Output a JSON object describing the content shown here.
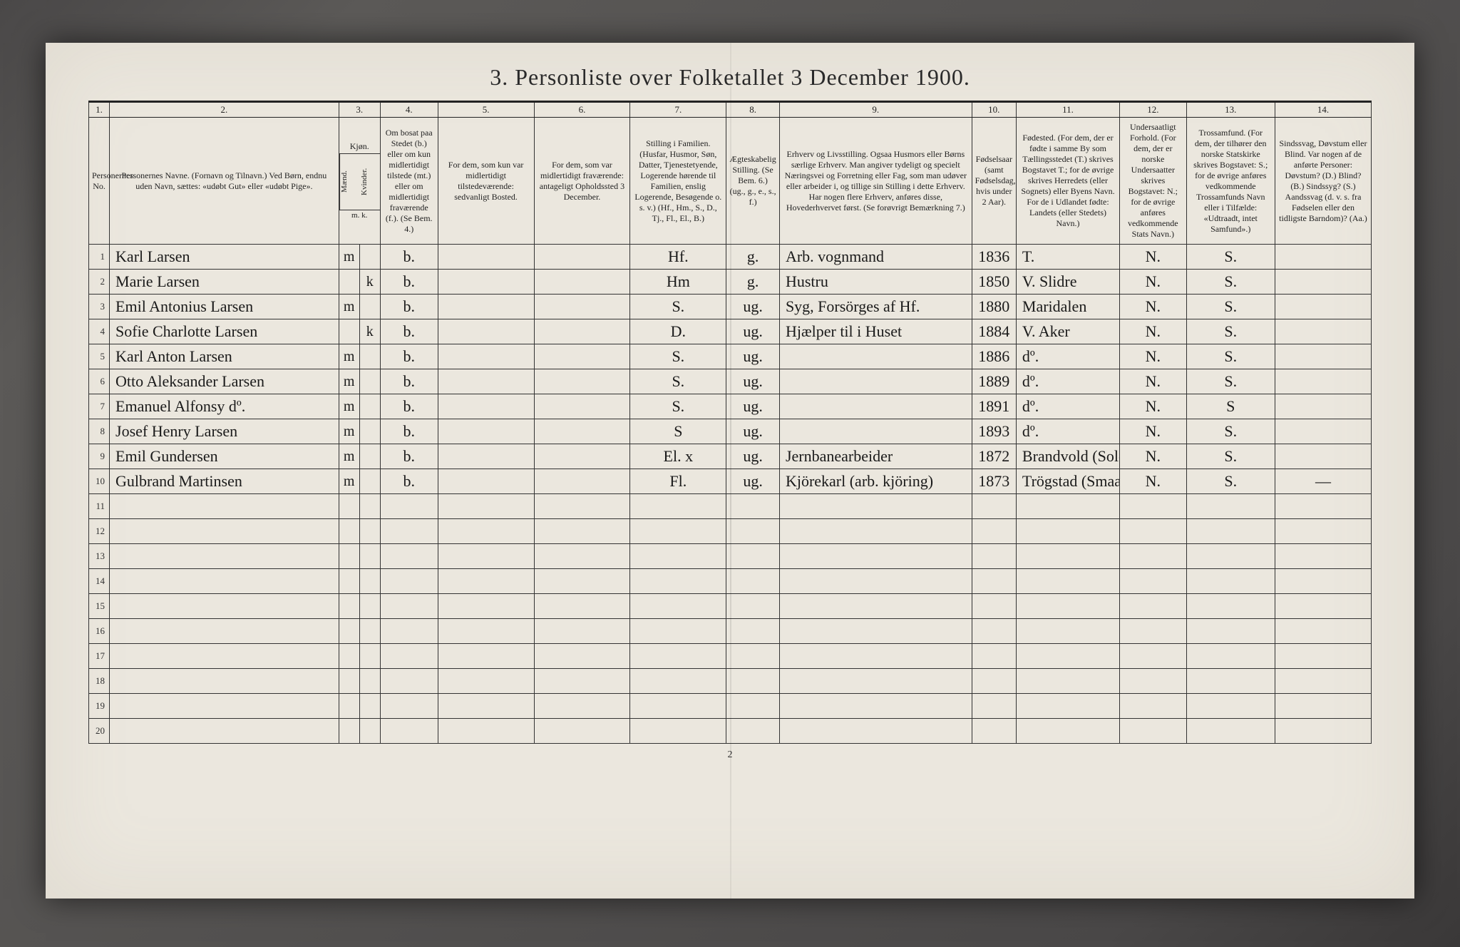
{
  "title": "3. Personliste over Folketallet 3 December 1900.",
  "footer_page": "2",
  "colnums": [
    "1.",
    "2.",
    "3.",
    "4.",
    "5.",
    "6.",
    "7.",
    "8.",
    "9.",
    "10.",
    "11.",
    "12.",
    "13.",
    "14."
  ],
  "headers": {
    "persno": "Personernes No.",
    "name": "Personernes Navne.\n(Fornavn og Tilnavn.)\nVed Børn, endnu uden Navn, sættes: «udøbt Gut» eller «udøbt Pige».",
    "sex_m": "Mænd.",
    "sex_k": "Kvinder.",
    "sex_group": "Kjøn.",
    "sex_footer": "m. k.",
    "resident": "Om bosat paa Stedet (b.) eller om kun midlertidigt tilstede (mt.) eller om midlertidigt fraværende (f.).\n(Se Bem. 4.)",
    "temp_present": "For dem, som kun var midlertidigt tilstedeværende:\nsedvanligt Bosted.",
    "temp_absent": "For dem, som var midlertidigt fraværende:\nantageligt Opholdssted 3 December.",
    "family_pos": "Stilling i Familien.\n(Husfar, Husmor, Søn, Datter, Tjenestetyende, Logerende hørende til Familien, enslig Logerende, Besøgende o. s. v.)\n(Hf., Hm., S., D., Tj., Fl., El., B.)",
    "marital": "Ægteskabelig Stilling.\n(Se Bem. 6.)\n(ug., g., e., s., f.)",
    "occupation": "Erhverv og Livsstilling.\nOgsaa Husmors eller Børns særlige Erhverv. Man angiver tydeligt og specielt Næringsvei og Forretning eller Fag, som man udøver eller arbeider i, og tillige sin Stilling i dette Erhverv.\nHar nogen flere Erhverv, anføres disse, Hovederhvervet først.\n(Se forøvrigt Bemærkning 7.)",
    "birthyear": "Fødselsaar\n(samt Fødselsdag, hvis under 2 Aar).",
    "birthplace": "Fødested.\n(For dem, der er fødte i samme By som Tællingsstedet (T.) skrives Bogstavet T.; for de øvrige skrives Herredets (eller Sognets) eller Byens Navn. For de i Udlandet fødte: Landets (eller Stedets) Navn.)",
    "nationality": "Undersaatligt Forhold.\n(For dem, der er norske Undersaatter skrives Bogstavet: N.; for de øvrige anføres vedkommende Stats Navn.)",
    "religion": "Trossamfund.\n(For dem, der tilhører den norske Statskirke skrives Bogstavet: S.; for de øvrige anføres vedkommende Trossamfunds Navn eller i Tilfælde: «Udtraadt, intet Samfund».)",
    "disability": "Sindssvag, Døvstum eller Blind.\nVar nogen af de anførte Personer:\nDøvstum? (D.)\nBlind? (B.)\nSindssyg? (S.)\nAandssvag (d. v. s. fra Fødselen eller den tidligste Barndom)? (Aa.)"
  },
  "rows": [
    {
      "no": "1",
      "name": "Karl Larsen",
      "m": "m",
      "k": "",
      "res": "b.",
      "tp": "",
      "ta": "",
      "fam": "Hf.",
      "mar": "g.",
      "occ": "Arb. vognmand",
      "by": "1836",
      "bp": "T.",
      "nat": "N.",
      "rel": "S.",
      "dis": ""
    },
    {
      "no": "2",
      "name": "Marie Larsen",
      "m": "",
      "k": "k",
      "res": "b.",
      "tp": "",
      "ta": "",
      "fam": "Hm",
      "mar": "g.",
      "occ": "Hustru",
      "by": "1850",
      "bp": "V. Slidre",
      "nat": "N.",
      "rel": "S.",
      "dis": ""
    },
    {
      "no": "3",
      "name": "Emil Antonius Larsen",
      "m": "m",
      "k": "",
      "res": "b.",
      "tp": "",
      "ta": "",
      "fam": "S.",
      "mar": "ug.",
      "occ": "Syg, Forsörges af Hf.",
      "by": "1880",
      "bp": "Maridalen",
      "nat": "N.",
      "rel": "S.",
      "dis": ""
    },
    {
      "no": "4",
      "name": "Sofie Charlotte Larsen",
      "m": "",
      "k": "k",
      "res": "b.",
      "tp": "",
      "ta": "",
      "fam": "D.",
      "mar": "ug.",
      "occ": "Hjælper til i Huset",
      "by": "1884",
      "bp": "V. Aker",
      "nat": "N.",
      "rel": "S.",
      "dis": ""
    },
    {
      "no": "5",
      "name": "Karl Anton Larsen",
      "m": "m",
      "k": "",
      "res": "b.",
      "tp": "",
      "ta": "",
      "fam": "S.",
      "mar": "ug.",
      "occ": "",
      "by": "1886",
      "bp": "dº.",
      "nat": "N.",
      "rel": "S.",
      "dis": ""
    },
    {
      "no": "6",
      "name": "Otto Aleksander Larsen",
      "m": "m",
      "k": "",
      "res": "b.",
      "tp": "",
      "ta": "",
      "fam": "S.",
      "mar": "ug.",
      "occ": "",
      "by": "1889",
      "bp": "dº.",
      "nat": "N.",
      "rel": "S.",
      "dis": ""
    },
    {
      "no": "7",
      "name": "Emanuel Alfonsy dº.",
      "m": "m",
      "k": "",
      "res": "b.",
      "tp": "",
      "ta": "",
      "fam": "S.",
      "mar": "ug.",
      "occ": "",
      "by": "1891",
      "bp": "dº.",
      "nat": "N.",
      "rel": "S",
      "dis": ""
    },
    {
      "no": "8",
      "name": "Josef Henry Larsen",
      "m": "m",
      "k": "",
      "res": "b.",
      "tp": "",
      "ta": "",
      "fam": "S",
      "mar": "ug.",
      "occ": "",
      "by": "1893",
      "bp": "dº.",
      "nat": "N.",
      "rel": "S.",
      "dis": ""
    },
    {
      "no": "9",
      "name": "Emil Gundersen",
      "m": "m",
      "k": "",
      "res": "b.",
      "tp": "",
      "ta": "",
      "fam": "El. x",
      "mar": "ug.",
      "occ": "Jernbanearbeider",
      "by": "1872",
      "bp": "Brandvold (Solör)",
      "nat": "N.",
      "rel": "S.",
      "dis": ""
    },
    {
      "no": "10",
      "name": "Gulbrand Martinsen",
      "m": "m",
      "k": "",
      "res": "b.",
      "tp": "",
      "ta": "",
      "fam": "Fl.",
      "mar": "ug.",
      "occ": "Kjörekarl (arb. kjöring)",
      "by": "1873",
      "bp": "Trögstad (Smaal.)",
      "nat": "N.",
      "rel": "S.",
      "dis": "—"
    },
    {
      "no": "11"
    },
    {
      "no": "12"
    },
    {
      "no": "13"
    },
    {
      "no": "14"
    },
    {
      "no": "15"
    },
    {
      "no": "16"
    },
    {
      "no": "17"
    },
    {
      "no": "18"
    },
    {
      "no": "19"
    },
    {
      "no": "20"
    }
  ]
}
